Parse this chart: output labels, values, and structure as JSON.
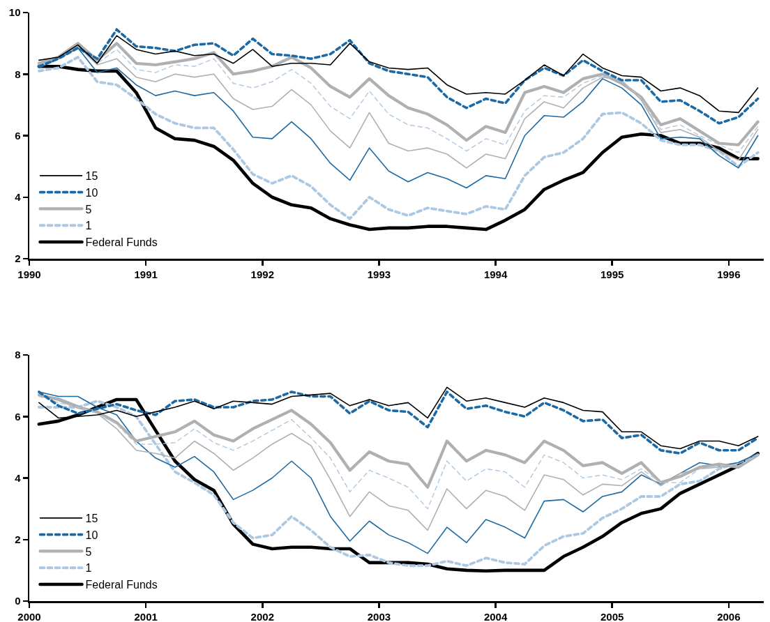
{
  "chart_data": [
    {
      "type": "line",
      "xlim": [
        1990,
        1996.3
      ],
      "xticks": [
        1990,
        1991,
        1992,
        1993,
        1994,
        1995,
        1996
      ],
      "ylim": [
        2,
        10
      ],
      "yticks": [
        2,
        4,
        6,
        8,
        10
      ],
      "grid": false,
      "legend": "bottom left",
      "marker": "none",
      "x": [
        1990.083,
        1990.25,
        1990.417,
        1990.583,
        1990.75,
        1990.917,
        1991.083,
        1991.25,
        1991.417,
        1991.583,
        1991.75,
        1991.917,
        1992.083,
        1992.25,
        1992.417,
        1992.583,
        1992.75,
        1992.917,
        1993.083,
        1993.25,
        1993.417,
        1993.583,
        1993.75,
        1993.917,
        1994.083,
        1994.25,
        1994.417,
        1994.583,
        1994.75,
        1994.917,
        1995.083,
        1995.25,
        1995.417,
        1995.583,
        1995.75,
        1995.917,
        1996.083,
        1996.25
      ],
      "series": [
        {
          "name": "15",
          "color": "#000000",
          "line_style": "solid",
          "values": [
            8.45,
            8.55,
            8.95,
            8.35,
            9.25,
            8.8,
            8.65,
            8.75,
            8.6,
            8.65,
            8.35,
            8.8,
            8.25,
            8.35,
            8.35,
            8.3,
            9.0,
            8.4,
            8.2,
            8.15,
            8.2,
            7.65,
            7.35,
            7.4,
            7.35,
            7.8,
            8.3,
            7.95,
            8.65,
            8.2,
            7.95,
            7.9,
            7.45,
            7.55,
            7.3,
            6.8,
            6.75,
            7.55
          ]
        },
        {
          "name": "10",
          "color": "#1b6aa5",
          "line_style": "dashed",
          "values": [
            8.25,
            8.5,
            8.85,
            8.5,
            9.45,
            8.9,
            8.85,
            8.75,
            8.95,
            9.0,
            8.6,
            9.15,
            8.65,
            8.6,
            8.5,
            8.65,
            9.1,
            8.35,
            8.1,
            8.0,
            7.9,
            7.25,
            6.9,
            7.2,
            7.05,
            7.8,
            8.2,
            7.95,
            8.45,
            8.1,
            7.8,
            7.8,
            7.1,
            7.15,
            6.8,
            6.4,
            6.6,
            7.2
          ]
        },
        {
          "color": "#adc8e0",
          "line_style": "dashed",
          "values": [
            8.3,
            8.5,
            8.85,
            8.35,
            8.8,
            8.15,
            8.05,
            8.3,
            8.25,
            8.5,
            7.7,
            7.55,
            7.75,
            8.15,
            7.7,
            6.95,
            6.55,
            7.45,
            6.7,
            6.35,
            6.25,
            5.9,
            5.5,
            5.9,
            5.7,
            6.8,
            7.3,
            7.25,
            7.7,
            7.95,
            7.8,
            7.2,
            6.2,
            6.35,
            6.0,
            5.7,
            5.45,
            6.3
          ]
        },
        {
          "name": "5",
          "color": "#b0b0b0",
          "line_style": "solid",
          "values": [
            8.35,
            8.55,
            9.0,
            8.45,
            9.0,
            8.35,
            8.3,
            8.4,
            8.5,
            8.7,
            8.0,
            8.1,
            8.25,
            8.55,
            8.2,
            7.6,
            7.25,
            7.85,
            7.3,
            6.9,
            6.7,
            6.35,
            5.85,
            6.3,
            6.1,
            7.4,
            7.6,
            7.4,
            7.85,
            8.0,
            7.7,
            7.25,
            6.35,
            6.55,
            6.15,
            5.75,
            5.7,
            6.45
          ]
        },
        {
          "color": "#b0b0b0",
          "line_style": "solid",
          "values": [
            8.3,
            8.5,
            8.9,
            8.3,
            8.5,
            7.9,
            7.75,
            8.0,
            7.9,
            8.0,
            7.2,
            6.85,
            6.95,
            7.5,
            7.0,
            6.15,
            5.6,
            6.75,
            5.75,
            5.5,
            5.6,
            5.4,
            4.95,
            5.4,
            5.25,
            6.55,
            7.1,
            6.9,
            7.55,
            7.9,
            7.8,
            7.15,
            6.1,
            6.2,
            5.95,
            5.5,
            5.2,
            6.2
          ]
        },
        {
          "color": "#1b6aa5",
          "line_style": "solid",
          "values": [
            8.2,
            8.5,
            8.85,
            8.05,
            8.2,
            7.65,
            7.3,
            7.45,
            7.3,
            7.4,
            6.8,
            5.95,
            5.9,
            6.45,
            5.9,
            5.1,
            4.55,
            5.6,
            4.85,
            4.5,
            4.8,
            4.6,
            4.3,
            4.7,
            4.6,
            6.0,
            6.65,
            6.6,
            7.1,
            7.85,
            7.55,
            7.0,
            5.9,
            5.95,
            5.9,
            5.35,
            4.95,
            6.0
          ]
        },
        {
          "name": "1",
          "color": "#adc8e0",
          "line_style": "dashed",
          "values": [
            8.1,
            8.2,
            8.55,
            7.75,
            7.65,
            7.2,
            6.7,
            6.4,
            6.25,
            6.25,
            5.55,
            4.75,
            4.45,
            4.7,
            4.35,
            3.75,
            3.3,
            4.0,
            3.6,
            3.4,
            3.65,
            3.55,
            3.45,
            3.7,
            3.6,
            4.7,
            5.3,
            5.45,
            5.9,
            6.7,
            6.75,
            6.4,
            5.85,
            5.7,
            5.7,
            5.5,
            5.0,
            5.45
          ]
        },
        {
          "name": "Federal Funds",
          "color": "#000000",
          "line_style": "solid",
          "values": [
            8.25,
            8.25,
            8.15,
            8.1,
            8.1,
            7.4,
            6.25,
            5.9,
            5.85,
            5.65,
            5.2,
            4.45,
            4.0,
            3.75,
            3.65,
            3.3,
            3.1,
            2.95,
            3.0,
            3.0,
            3.05,
            3.05,
            3.0,
            2.95,
            3.25,
            3.6,
            4.25,
            4.55,
            4.8,
            5.45,
            5.95,
            6.05,
            6.0,
            5.75,
            5.75,
            5.6,
            5.25,
            5.25
          ]
        }
      ]
    },
    {
      "type": "line",
      "xlim": [
        2000,
        2006.3
      ],
      "xticks": [
        2000,
        2001,
        2002,
        2003,
        2004,
        2005,
        2006
      ],
      "ylim": [
        0,
        8
      ],
      "yticks": [
        0,
        2,
        4,
        6,
        8
      ],
      "grid": false,
      "legend": "bottom left",
      "marker": "none",
      "x": [
        2000.083,
        2000.25,
        2000.417,
        2000.583,
        2000.75,
        2000.917,
        2001.083,
        2001.25,
        2001.417,
        2001.583,
        2001.75,
        2001.917,
        2002.083,
        2002.25,
        2002.417,
        2002.583,
        2002.75,
        2002.917,
        2003.083,
        2003.25,
        2003.417,
        2003.583,
        2003.75,
        2003.917,
        2004.083,
        2004.25,
        2004.417,
        2004.583,
        2004.75,
        2004.917,
        2005.083,
        2005.25,
        2005.417,
        2005.583,
        2005.75,
        2005.917,
        2006.083,
        2006.25
      ],
      "series": [
        {
          "name": "15",
          "color": "#000000",
          "line_style": "solid",
          "values": [
            6.45,
            5.95,
            6.0,
            6.05,
            6.2,
            6.0,
            6.15,
            6.3,
            6.5,
            6.25,
            6.5,
            6.45,
            6.4,
            6.65,
            6.7,
            6.75,
            6.35,
            6.55,
            6.35,
            6.45,
            5.95,
            6.95,
            6.5,
            6.6,
            6.45,
            6.3,
            6.6,
            6.45,
            6.2,
            6.15,
            5.5,
            5.5,
            5.05,
            4.95,
            5.2,
            5.2,
            5.05,
            5.35
          ]
        },
        {
          "name": "10",
          "color": "#1b6aa5",
          "line_style": "dashed",
          "values": [
            6.8,
            6.35,
            6.1,
            6.25,
            6.4,
            6.2,
            6.05,
            6.5,
            6.55,
            6.3,
            6.3,
            6.5,
            6.55,
            6.8,
            6.65,
            6.65,
            6.1,
            6.5,
            6.2,
            6.15,
            5.65,
            6.8,
            6.25,
            6.35,
            6.15,
            6.0,
            6.45,
            6.2,
            5.85,
            5.9,
            5.3,
            5.4,
            4.9,
            4.8,
            5.15,
            4.9,
            4.9,
            5.3
          ]
        },
        {
          "color": "#adc8e0",
          "line_style": "dashed",
          "values": [
            6.65,
            6.45,
            6.3,
            6.1,
            5.75,
            5.1,
            5.1,
            5.15,
            5.6,
            5.15,
            4.9,
            5.2,
            5.55,
            5.9,
            5.3,
            4.65,
            3.55,
            4.25,
            4.0,
            3.7,
            3.0,
            4.55,
            3.9,
            4.3,
            4.2,
            3.7,
            4.75,
            4.5,
            4.0,
            4.1,
            3.95,
            4.3,
            3.85,
            3.85,
            4.3,
            4.4,
            4.4,
            4.75
          ]
        },
        {
          "name": "5",
          "color": "#b0b0b0",
          "line_style": "solid",
          "values": [
            6.7,
            6.55,
            6.3,
            6.15,
            5.8,
            5.2,
            5.35,
            5.5,
            5.85,
            5.4,
            5.2,
            5.6,
            5.9,
            6.2,
            5.75,
            5.15,
            4.25,
            4.85,
            4.55,
            4.45,
            3.7,
            5.2,
            4.55,
            4.9,
            4.75,
            4.5,
            5.2,
            4.9,
            4.4,
            4.5,
            4.15,
            4.5,
            3.85,
            4.05,
            4.35,
            4.45,
            4.35,
            4.75
          ]
        },
        {
          "color": "#b0b0b0",
          "line_style": "solid",
          "values": [
            6.7,
            6.6,
            6.35,
            6.1,
            5.6,
            4.9,
            4.8,
            4.65,
            5.2,
            4.8,
            4.25,
            4.65,
            5.1,
            5.45,
            5.05,
            3.95,
            2.75,
            3.55,
            3.1,
            2.95,
            2.3,
            3.65,
            3.0,
            3.6,
            3.4,
            2.95,
            4.1,
            3.95,
            3.45,
            3.8,
            3.75,
            4.2,
            3.75,
            4.15,
            4.3,
            4.35,
            4.4,
            4.75
          ]
        },
        {
          "color": "#1b6aa5",
          "line_style": "solid",
          "values": [
            6.8,
            6.65,
            6.65,
            6.3,
            6.05,
            5.2,
            4.65,
            4.35,
            4.7,
            4.2,
            3.3,
            3.6,
            4.0,
            4.55,
            4.0,
            2.75,
            1.95,
            2.6,
            2.15,
            1.9,
            1.55,
            2.4,
            1.9,
            2.65,
            2.4,
            2.05,
            3.25,
            3.3,
            2.9,
            3.4,
            3.55,
            4.1,
            3.8,
            4.15,
            4.5,
            4.4,
            4.5,
            4.8
          ]
        },
        {
          "name": "1",
          "color": "#adc8e0",
          "line_style": "dashed",
          "values": [
            6.3,
            6.3,
            6.3,
            6.5,
            6.3,
            6.0,
            5.1,
            4.2,
            3.85,
            3.45,
            2.55,
            2.05,
            2.15,
            2.75,
            2.3,
            1.75,
            1.45,
            1.5,
            1.25,
            1.15,
            1.15,
            1.3,
            1.15,
            1.4,
            1.25,
            1.2,
            1.8,
            2.1,
            2.2,
            2.7,
            3.0,
            3.4,
            3.4,
            3.8,
            3.9,
            4.3,
            4.5,
            4.75
          ]
        },
        {
          "name": "Federal Funds",
          "color": "#000000",
          "line_style": "solid",
          "values": [
            5.75,
            5.85,
            6.05,
            6.3,
            6.55,
            6.55,
            5.55,
            4.55,
            3.95,
            3.6,
            2.5,
            1.85,
            1.7,
            1.75,
            1.75,
            1.7,
            1.7,
            1.25,
            1.25,
            1.25,
            1.2,
            1.05,
            1.0,
            0.98,
            1.0,
            1.0,
            1.0,
            1.45,
            1.75,
            2.1,
            2.55,
            2.85,
            3.0,
            3.5,
            3.8,
            4.1,
            4.4,
            4.8
          ]
        }
      ]
    }
  ]
}
